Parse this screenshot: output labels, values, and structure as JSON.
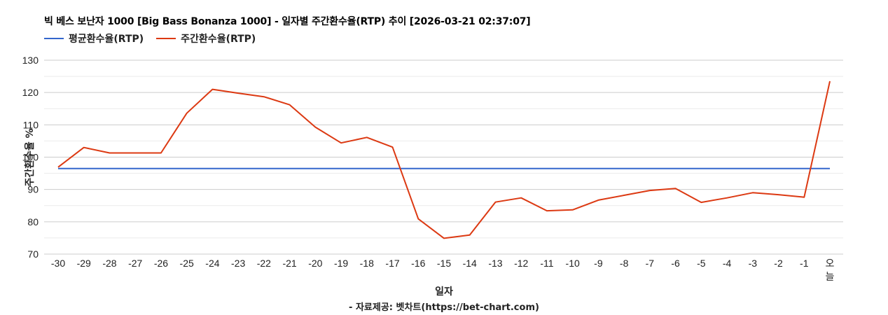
{
  "header": {
    "title": "빅 베스 보난자 1000 [Big Bass Bonanza 1000] - 일자별 주간환수율(RTP) 추이 [2026-03-21 02:37:07]"
  },
  "legend": [
    {
      "label": "평균환수율(RTP)",
      "color": "#3366cc"
    },
    {
      "label": "주간환수율(RTP)",
      "color": "#dc3912"
    }
  ],
  "footer": {
    "xlabel": "일자",
    "source": "- 자료제공: 벳차트(https://bet-chart.com)"
  },
  "chart_data": {
    "type": "line",
    "title": "빅 베스 보난자 1000 [Big Bass Bonanza 1000] - 일자별 주간환수율(RTP) 추이 [2026-03-21 02:37:07]",
    "xlabel": "일자",
    "ylabel": "주간환수율 %",
    "ylim": [
      70,
      130
    ],
    "yticks": [
      70,
      80,
      90,
      100,
      110,
      120,
      130
    ],
    "grid": true,
    "legend_position": "top",
    "categories": [
      "-30",
      "-29",
      "-28",
      "-27",
      "-26",
      "-25",
      "-24",
      "-23",
      "-22",
      "-21",
      "-20",
      "-19",
      "-18",
      "-17",
      "-16",
      "-15",
      "-14",
      "-13",
      "-12",
      "-11",
      "-10",
      "-9",
      "-8",
      "-7",
      "-6",
      "-5",
      "-4",
      "-3",
      "-2",
      "-1",
      "오늘"
    ],
    "series": [
      {
        "name": "평균환수율(RTP)",
        "color": "#3366cc",
        "values": [
          96.5,
          96.5,
          96.5,
          96.5,
          96.5,
          96.5,
          96.5,
          96.5,
          96.5,
          96.5,
          96.5,
          96.5,
          96.5,
          96.5,
          96.5,
          96.5,
          96.5,
          96.5,
          96.5,
          96.5,
          96.5,
          96.5,
          96.5,
          96.5,
          96.5,
          96.5,
          96.5,
          96.5,
          96.5,
          96.5,
          96.5
        ]
      },
      {
        "name": "주간환수율(RTP)",
        "color": "#dc3912",
        "values": [
          96.9,
          103.0,
          101.3,
          101.3,
          101.3,
          113.6,
          121.0,
          119.8,
          118.7,
          116.2,
          109.3,
          104.4,
          106.1,
          103.1,
          80.9,
          74.9,
          75.9,
          86.1,
          87.4,
          83.4,
          83.7,
          86.7,
          88.2,
          89.7,
          90.3,
          86.0,
          87.4,
          89.0,
          88.4,
          87.6,
          123.5
        ]
      }
    ]
  }
}
